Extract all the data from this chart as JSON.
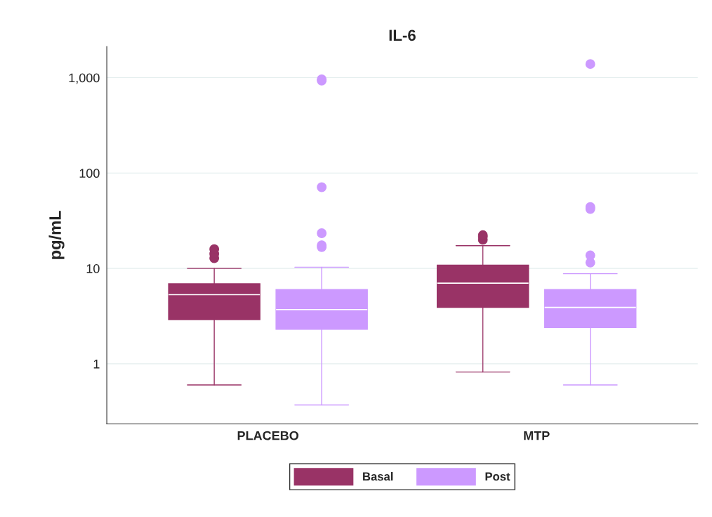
{
  "chart_data": {
    "type": "box",
    "title": "IL-6",
    "ylabel": "pg/mL",
    "categories": [
      "PLACEBO",
      "MTP"
    ],
    "log": true,
    "ylim": [
      0.234,
      2120
    ],
    "yticks": [
      1,
      10,
      100,
      {
        "value": 1000,
        "label": "1,000"
      }
    ],
    "grid": "y",
    "legend": "bottom",
    "series": [
      {
        "name": "Basal",
        "color": "#993366",
        "boxes": [
          {
            "low": 0.6,
            "q1": 2.9,
            "median": 5.3,
            "q3": 6.9,
            "high": 10,
            "outliers": [
              12.8,
              14.2,
              15.9
            ]
          },
          {
            "low": 0.82,
            "q1": 3.9,
            "median": 7.0,
            "q3": 10.8,
            "high": 17.3,
            "outliers": [
              20,
              21.5,
              22.3
            ]
          }
        ]
      },
      {
        "name": "Post",
        "color": "#cc99ff",
        "boxes": [
          {
            "low": 0.37,
            "q1": 2.3,
            "median": 3.7,
            "q3": 6.0,
            "high": 10.3,
            "outliers": [
              16.7,
              17.5,
              23.4,
              71,
              930,
              960
            ]
          },
          {
            "low": 0.6,
            "q1": 2.4,
            "median": 3.9,
            "q3": 6.0,
            "high": 8.8,
            "outliers": [
              11.5,
              13.7,
              42,
              44,
              1390
            ]
          }
        ]
      }
    ]
  }
}
